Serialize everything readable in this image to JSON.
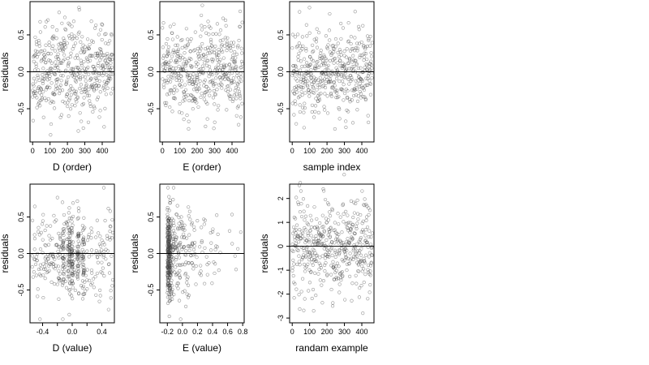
{
  "chart_data": [
    {
      "type": "scatter",
      "xlabel": "D (order)",
      "ylabel": "residuals",
      "xlim": [
        -15,
        470
      ],
      "ylim": [
        -0.95,
        0.95
      ],
      "xticks": [
        {
          "v": 0,
          "l": "0"
        },
        {
          "v": 100,
          "l": "100"
        },
        {
          "v": 200,
          "l": "200"
        },
        {
          "v": 300,
          "l": "300"
        },
        {
          "v": 400,
          "l": "400"
        }
      ],
      "yticks": [
        {
          "v": -0.5,
          "l": "-0.5"
        },
        {
          "v": 0.0,
          "l": "0.0"
        },
        {
          "v": 0.5,
          "l": "0.5"
        }
      ],
      "hline": 0,
      "points": {
        "generator": "uniform-index",
        "n": 460,
        "x_range": [
          0,
          460
        ],
        "y_sd": 0.3,
        "y_clip": 0.9,
        "seed": 11
      },
      "grid": false
    },
    {
      "type": "scatter",
      "xlabel": "E (order)",
      "ylabel": "residuals",
      "xlim": [
        -15,
        470
      ],
      "ylim": [
        -0.95,
        0.95
      ],
      "xticks": [
        {
          "v": 0,
          "l": "0"
        },
        {
          "v": 100,
          "l": "100"
        },
        {
          "v": 200,
          "l": "200"
        },
        {
          "v": 300,
          "l": "300"
        },
        {
          "v": 400,
          "l": "400"
        }
      ],
      "yticks": [
        {
          "v": -0.5,
          "l": "-0.5"
        },
        {
          "v": 0.0,
          "l": "0.0"
        },
        {
          "v": 0.5,
          "l": "0.5"
        }
      ],
      "hline": 0,
      "points": {
        "generator": "uniform-index",
        "n": 460,
        "x_range": [
          0,
          460
        ],
        "y_sd": 0.3,
        "y_clip": 0.9,
        "seed": 23
      },
      "grid": false
    },
    {
      "type": "scatter",
      "xlabel": "sample index",
      "ylabel": "residuals",
      "xlim": [
        -15,
        470
      ],
      "ylim": [
        -0.95,
        0.95
      ],
      "xticks": [
        {
          "v": 0,
          "l": "0"
        },
        {
          "v": 100,
          "l": "100"
        },
        {
          "v": 200,
          "l": "200"
        },
        {
          "v": 300,
          "l": "300"
        },
        {
          "v": 400,
          "l": "400"
        }
      ],
      "yticks": [
        {
          "v": -0.5,
          "l": "-0.5"
        },
        {
          "v": 0.0,
          "l": "0.0"
        },
        {
          "v": 0.5,
          "l": "0.5"
        }
      ],
      "hline": 0,
      "points": {
        "generator": "uniform-index",
        "n": 460,
        "x_range": [
          0,
          460
        ],
        "y_sd": 0.28,
        "y_clip": 0.9,
        "seed": 37
      },
      "grid": false
    },
    {
      "type": "scatter",
      "xlabel": "D (value)",
      "ylabel": "residuals",
      "xlim": [
        -0.57,
        0.57
      ],
      "ylim": [
        -0.95,
        0.95
      ],
      "xticks": [
        {
          "v": -0.4,
          "l": "-0.4"
        },
        {
          "v": -0.2,
          "l": ""
        },
        {
          "v": 0.0,
          "l": "0.0"
        },
        {
          "v": 0.2,
          "l": ""
        },
        {
          "v": 0.4,
          "l": "0.4"
        }
      ],
      "yticks": [
        {
          "v": -0.5,
          "l": "-0.5"
        },
        {
          "v": 0.0,
          "l": "0.0"
        },
        {
          "v": 0.5,
          "l": "0.5"
        }
      ],
      "hline": 0,
      "points": {
        "generator": "banded",
        "n": 460,
        "x_range": [
          -0.55,
          0.55
        ],
        "bands": [
          -0.12,
          -0.04,
          0.0,
          0.08,
          0.15
        ],
        "band_width": 0.012,
        "band_share": 0.45,
        "y_sd": 0.3,
        "y_clip": 0.9,
        "seed": 41
      },
      "grid": false
    },
    {
      "type": "scatter",
      "xlabel": "E (value)",
      "ylabel": "residuals",
      "xlim": [
        -0.3,
        0.82
      ],
      "ylim": [
        -0.95,
        0.95
      ],
      "xticks": [
        {
          "v": -0.2,
          "l": "-0.2"
        },
        {
          "v": 0.0,
          "l": "0.0"
        },
        {
          "v": 0.2,
          "l": "0.2"
        },
        {
          "v": 0.4,
          "l": "0.4"
        },
        {
          "v": 0.6,
          "l": "0.6"
        },
        {
          "v": 0.8,
          "l": "0.8"
        }
      ],
      "yticks": [
        {
          "v": -0.5,
          "l": "-0.5"
        },
        {
          "v": 0.0,
          "l": "0.0"
        },
        {
          "v": 0.5,
          "l": "0.5"
        }
      ],
      "hline": 0,
      "points": {
        "generator": "skewed",
        "n": 460,
        "x_min": -0.2,
        "x_max": 0.8,
        "dense_share": 0.45,
        "dense_width": 0.04,
        "decay": 0.22,
        "y_sd": 0.3,
        "y_clip": 0.9,
        "seed": 53
      },
      "grid": false
    },
    {
      "type": "scatter",
      "xlabel": "randam example",
      "ylabel": "residuals",
      "xlim": [
        -15,
        470
      ],
      "ylim": [
        -3.2,
        2.6
      ],
      "xticks": [
        {
          "v": 0,
          "l": "0"
        },
        {
          "v": 100,
          "l": "100"
        },
        {
          "v": 200,
          "l": "200"
        },
        {
          "v": 300,
          "l": "300"
        },
        {
          "v": 400,
          "l": "400"
        }
      ],
      "yticks": [
        {
          "v": -3,
          "l": "-3"
        },
        {
          "v": -2,
          "l": "-2"
        },
        {
          "v": -1,
          "l": "-1"
        },
        {
          "v": 0,
          "l": "0"
        },
        {
          "v": 1,
          "l": "1"
        },
        {
          "v": 2,
          "l": "2"
        }
      ],
      "hline": 0,
      "points": {
        "generator": "uniform-index",
        "n": 460,
        "x_range": [
          0,
          460
        ],
        "y_sd": 1.0,
        "y_clip": 3.0,
        "seed": 67
      },
      "grid": false
    }
  ]
}
